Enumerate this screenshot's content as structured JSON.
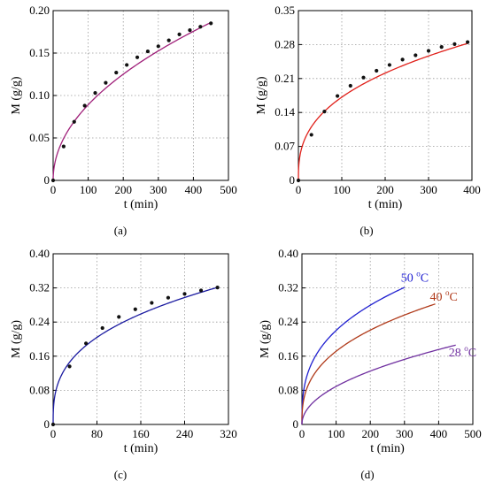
{
  "chart_data": [
    {
      "type": "line",
      "panel_label": "(a)",
      "xlabel": "t (min)",
      "ylabel": "M (g/g)",
      "xlim": [
        0,
        500
      ],
      "ylim": [
        0,
        0.2
      ],
      "xticks": [
        0,
        100,
        200,
        300,
        400,
        500
      ],
      "yticks": [
        0,
        0.05,
        0.1,
        0.15,
        0.2
      ],
      "ytick_labels": [
        "0",
        "0.05",
        "0.10",
        "0.15",
        "0.20"
      ],
      "grid": true,
      "line_color": "#a0207a",
      "fit": {
        "model": "power",
        "a": 0.00935,
        "b": 0.4895,
        "x_max": 450
      },
      "series": [
        {
          "kind": "points",
          "x": [
            0,
            30,
            60,
            90,
            120,
            150,
            180,
            210,
            240,
            270,
            300,
            330,
            360,
            390,
            420,
            450
          ],
          "y": [
            0,
            0.04,
            0.069,
            0.088,
            0.103,
            0.115,
            0.127,
            0.136,
            0.145,
            0.152,
            0.158,
            0.165,
            0.172,
            0.177,
            0.181,
            0.185
          ]
        }
      ]
    },
    {
      "type": "line",
      "panel_label": "(b)",
      "xlabel": "t (min)",
      "ylabel": "M (g/g)",
      "xlim": [
        0,
        400
      ],
      "ylim": [
        0,
        0.35
      ],
      "xticks": [
        0,
        100,
        200,
        300,
        400
      ],
      "yticks": [
        0,
        0.07,
        0.14,
        0.21,
        0.28,
        0.35
      ],
      "ytick_labels": [
        "0",
        "0.07",
        "0.14",
        "0.21",
        "0.28",
        "0.35"
      ],
      "grid": true,
      "line_color": "#e0201a",
      "fit": {
        "model": "power",
        "a": 0.0318,
        "b": 0.366,
        "x_max": 390
      },
      "series": [
        {
          "kind": "points",
          "x": [
            0,
            30,
            60,
            90,
            120,
            150,
            180,
            210,
            240,
            270,
            300,
            330,
            360,
            390
          ],
          "y": [
            0,
            0.094,
            0.142,
            0.174,
            0.195,
            0.212,
            0.226,
            0.238,
            0.249,
            0.258,
            0.267,
            0.275,
            0.281,
            0.285
          ]
        }
      ]
    },
    {
      "type": "line",
      "panel_label": "(c)",
      "xlabel": "t (min)",
      "ylabel": "M (g/g)",
      "xlim": [
        0,
        320
      ],
      "ylim": [
        0,
        0.4
      ],
      "xticks": [
        0,
        80,
        160,
        240,
        320
      ],
      "yticks": [
        0,
        0.08,
        0.16,
        0.24,
        0.32,
        0.4
      ],
      "ytick_labels": [
        "0",
        "0.08",
        "0.16",
        "0.24",
        "0.32",
        "0.40"
      ],
      "grid": true,
      "line_color": "#1a1aa0",
      "fit": {
        "model": "power",
        "a": 0.0454,
        "b": 0.343,
        "x_max": 300
      },
      "series": [
        {
          "kind": "points",
          "x": [
            0,
            30,
            60,
            90,
            120,
            150,
            180,
            210,
            240,
            270,
            300
          ],
          "y": [
            0,
            0.136,
            0.19,
            0.226,
            0.252,
            0.27,
            0.285,
            0.297,
            0.306,
            0.314,
            0.321
          ]
        }
      ]
    },
    {
      "type": "line",
      "panel_label": "(d)",
      "xlabel": "t (min)",
      "ylabel": "M (g/g)",
      "xlim": [
        0,
        500
      ],
      "ylim": [
        0,
        0.4
      ],
      "xticks": [
        0,
        100,
        200,
        300,
        400,
        500
      ],
      "yticks": [
        0,
        0.08,
        0.16,
        0.24,
        0.32,
        0.4
      ],
      "ytick_labels": [
        "0",
        "0.08",
        "0.16",
        "0.24",
        "0.32",
        "0.40"
      ],
      "grid": true,
      "series": [
        {
          "name": "50 °C",
          "label_base": "50",
          "color": "#2020d0",
          "model": "power",
          "a": 0.0454,
          "b": 0.343,
          "x_max": 300,
          "label_x": 330,
          "label_y": 0.335
        },
        {
          "name": "40 °C",
          "label_base": "40",
          "color": "#b03a1a",
          "model": "power",
          "a": 0.0318,
          "b": 0.366,
          "x_max": 390,
          "label_x": 415,
          "label_y": 0.29
        },
        {
          "name": "28 °C",
          "label_base": "28",
          "color": "#7030a0",
          "model": "power",
          "a": 0.00935,
          "b": 0.4895,
          "x_max": 450,
          "label_x": 470,
          "label_y": 0.16
        }
      ]
    }
  ]
}
